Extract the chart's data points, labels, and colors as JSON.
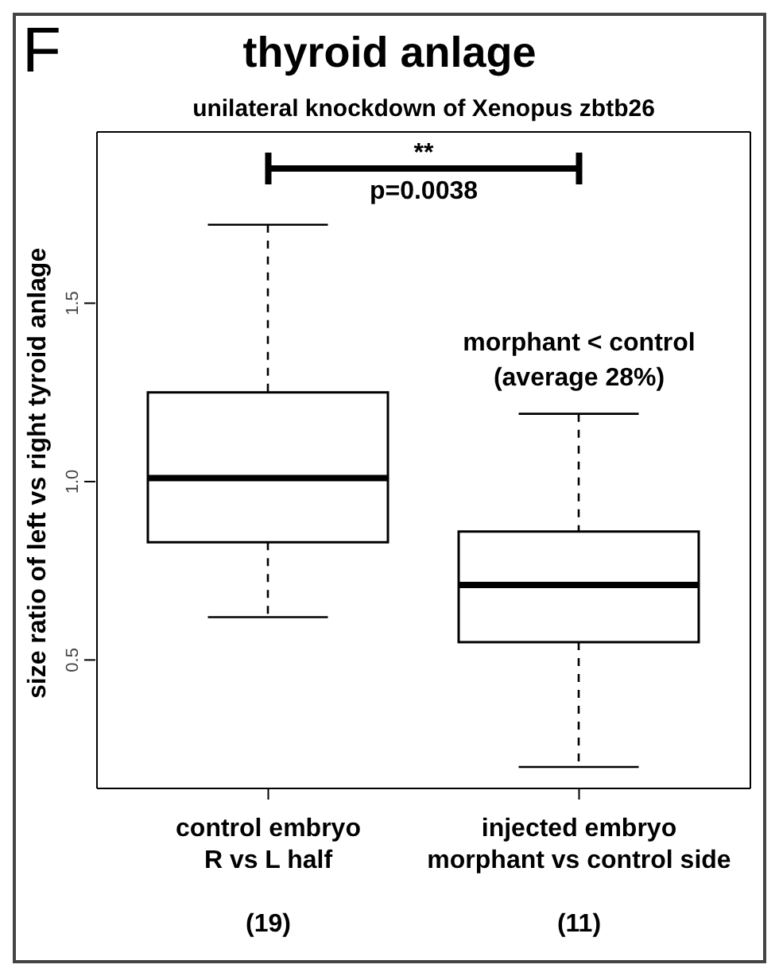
{
  "chart_data": {
    "type": "box",
    "title": "thyroid anlage",
    "subtitle": "unilateral knockdown of Xenopus zbtb26",
    "ylabel": "size ratio of left vs right tyroid anlage",
    "categories": [
      "control embryo\nR vs L half\n\n(19)",
      "injected embryo\nmorphant vs control side\n\n(11)"
    ],
    "boxes": [
      {
        "low": 0.62,
        "q1": 0.83,
        "median": 1.01,
        "q3": 1.25,
        "high": 1.72
      },
      {
        "low": 0.2,
        "q1": 0.55,
        "median": 0.71,
        "q3": 0.86,
        "high": 1.19
      }
    ],
    "ylim": [
      0.14,
      1.98
    ],
    "yticks": [
      {
        "value": 0.5,
        "label": "0.5"
      },
      {
        "value": 1,
        "label": "1.0"
      },
      {
        "value": 1.5,
        "label": "1.5"
      }
    ],
    "color": "#000000",
    "annotations": [
      "F",
      "**",
      "p=0.0038",
      "morphant < control\n(average 28%)"
    ]
  }
}
